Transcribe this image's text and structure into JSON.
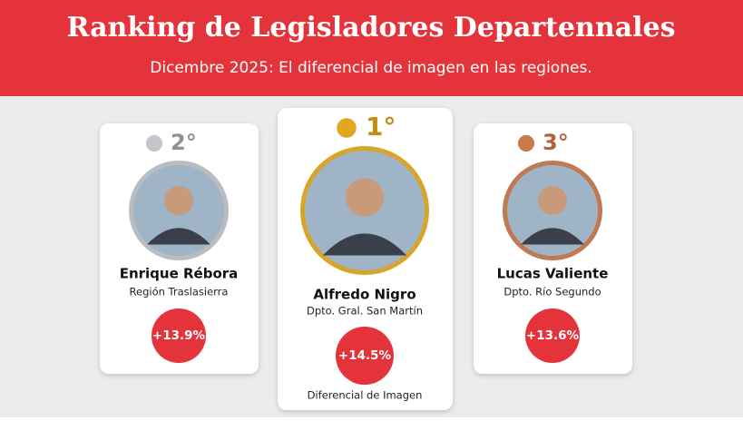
{
  "header": {
    "title": "Ranking de Legisladores Departennales",
    "subtitle": "Dicembre 2025: El diferencial de imagen en las regiones."
  },
  "cards": [
    {
      "rank": "2°",
      "name": "Enrique Rébora",
      "region": "Región Traslasierra",
      "value": "+13.9%"
    },
    {
      "rank": "1°",
      "name": "Alfredo Nigro",
      "region": "Dpto. Gral. San Martín",
      "value": "+14.5%",
      "caption": "Diferencial de Imagen"
    },
    {
      "rank": "3°",
      "name": "Lucas Valiente",
      "region": "Dpto. Río Segundo",
      "value": "+13.6%"
    }
  ]
}
